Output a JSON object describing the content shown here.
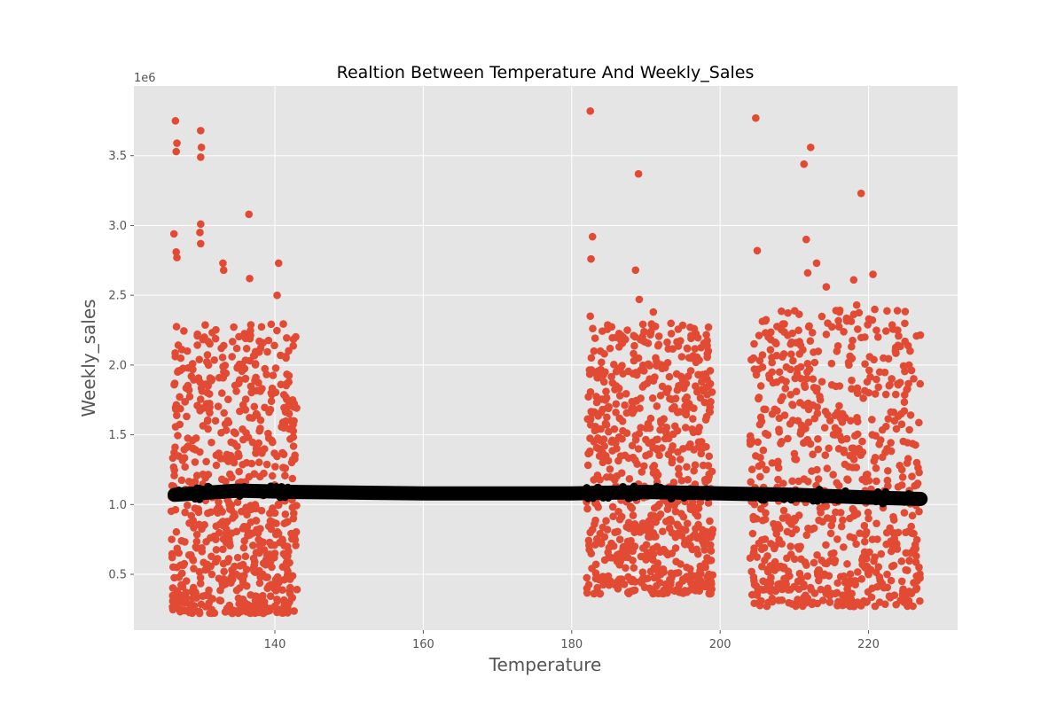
{
  "chart_data": {
    "type": "scatter",
    "title": "Realtion Between Temperature And Weekly_Sales",
    "xlabel": "Temperature",
    "ylabel": "Weekly_sales",
    "y_offset_label": "1e6",
    "xlim": [
      121,
      232
    ],
    "ylim": [
      0.1,
      4.0
    ],
    "x_ticks": [
      140,
      160,
      180,
      200,
      220
    ],
    "x_tick_labels": [
      "140",
      "160",
      "180",
      "200",
      "220"
    ],
    "y_ticks": [
      0.5,
      1.0,
      1.5,
      2.0,
      2.5,
      3.0,
      3.5
    ],
    "y_tick_labels": [
      "0.5",
      "1.0",
      "1.5",
      "2.0",
      "2.5",
      "3.0",
      "3.5"
    ],
    "grid": true,
    "style": "ggplot",
    "colors": {
      "background": "#e5e5e5",
      "grid": "#ffffff",
      "points": "#e24a33",
      "trend": "#000000"
    },
    "point_clusters": [
      {
        "x_range": [
          126,
          143
        ],
        "y_range": [
          0.22,
          2.3
        ]
      },
      {
        "x_range": [
          182,
          199
        ],
        "y_range": [
          0.36,
          2.3
        ]
      },
      {
        "x_range": [
          204,
          227
        ],
        "y_range": [
          0.27,
          2.4
        ]
      }
    ],
    "series": [
      {
        "kind": "scatter",
        "points": [
          [
            126.6,
            3.75
          ],
          [
            126.8,
            3.59
          ],
          [
            126.7,
            3.53
          ],
          [
            130.0,
            3.68
          ],
          [
            130.1,
            3.56
          ],
          [
            130.0,
            3.49
          ],
          [
            126.4,
            2.94
          ],
          [
            126.7,
            2.81
          ],
          [
            126.8,
            2.77
          ],
          [
            130.0,
            3.01
          ],
          [
            129.9,
            2.95
          ],
          [
            130.0,
            2.87
          ],
          [
            133.0,
            2.73
          ],
          [
            133.1,
            2.68
          ],
          [
            136.5,
            3.08
          ],
          [
            136.6,
            2.62
          ],
          [
            140.5,
            2.73
          ],
          [
            140.3,
            2.5
          ],
          [
            182.5,
            3.82
          ],
          [
            189.0,
            3.37
          ],
          [
            182.8,
            2.92
          ],
          [
            182.6,
            2.76
          ],
          [
            188.6,
            2.68
          ],
          [
            189.1,
            2.47
          ],
          [
            204.8,
            3.77
          ],
          [
            211.3,
            3.44
          ],
          [
            212.2,
            3.56
          ],
          [
            219.0,
            3.23
          ],
          [
            211.6,
            2.9
          ],
          [
            205.0,
            2.82
          ],
          [
            220.6,
            2.65
          ],
          [
            213.0,
            2.73
          ],
          [
            211.8,
            2.66
          ],
          [
            214.3,
            2.56
          ],
          [
            218.0,
            2.61
          ],
          [
            218.4,
            2.43
          ],
          [
            127.0,
            0.3
          ],
          [
            128.5,
            0.25
          ],
          [
            131.0,
            0.35
          ],
          [
            126.8,
            0.55
          ],
          [
            129.0,
            0.6
          ],
          [
            131.5,
            0.5
          ],
          [
            133.5,
            0.45
          ],
          [
            135.0,
            0.62
          ],
          [
            137.2,
            0.52
          ],
          [
            139.0,
            0.4
          ],
          [
            141.0,
            0.75
          ],
          [
            142.5,
            0.9
          ],
          [
            127.5,
            1.05
          ],
          [
            129.0,
            1.4
          ],
          [
            131.0,
            1.85
          ],
          [
            126.9,
            1.95
          ],
          [
            128.2,
            2.1
          ],
          [
            130.5,
            2.2
          ],
          [
            132.0,
            1.6
          ],
          [
            134.5,
            1.3
          ],
          [
            136.0,
            1.9
          ],
          [
            137.5,
            1.65
          ],
          [
            139.5,
            1.8
          ],
          [
            141.2,
            1.55
          ],
          [
            142.5,
            1.7
          ],
          [
            138.0,
            1.2
          ],
          [
            135.5,
            0.95
          ],
          [
            133.0,
            0.85
          ],
          [
            140.0,
            0.65
          ],
          [
            141.5,
            2.05
          ],
          [
            182.5,
            2.35
          ],
          [
            183.0,
            2.1
          ],
          [
            184.5,
            1.95
          ],
          [
            186.0,
            1.85
          ],
          [
            187.5,
            2.25
          ],
          [
            189.0,
            2.05
          ],
          [
            190.5,
            1.9
          ],
          [
            191.0,
            2.38
          ],
          [
            192.0,
            1.6
          ],
          [
            193.5,
            1.3
          ],
          [
            195.0,
            1.4
          ],
          [
            196.5,
            2.26
          ],
          [
            197.5,
            1.45
          ],
          [
            198.5,
            1.2
          ],
          [
            182.5,
            0.8
          ],
          [
            184.0,
            0.72
          ],
          [
            186.5,
            0.75
          ],
          [
            188.5,
            0.7
          ],
          [
            190.5,
            0.4
          ],
          [
            192.0,
            0.5
          ],
          [
            193.5,
            0.65
          ],
          [
            195.5,
            0.55
          ],
          [
            197.0,
            0.45
          ],
          [
            198.8,
            0.6
          ],
          [
            183.0,
            1.45
          ],
          [
            185.0,
            1.7
          ],
          [
            190.0,
            1.35
          ],
          [
            194.0,
            0.95
          ],
          [
            196.0,
            1.05
          ],
          [
            199.0,
            0.82
          ],
          [
            204.5,
            2.05
          ],
          [
            205.5,
            1.85
          ],
          [
            206.5,
            2.2
          ],
          [
            208.0,
            1.95
          ],
          [
            209.5,
            2.15
          ],
          [
            210.5,
            1.6
          ],
          [
            211.5,
            1.45
          ],
          [
            212.5,
            1.9
          ],
          [
            213.5,
            1.75
          ],
          [
            214.5,
            2.3
          ],
          [
            215.5,
            1.55
          ],
          [
            216.5,
            1.65
          ],
          [
            217.5,
            1.35
          ],
          [
            218.5,
            1.8
          ],
          [
            219.5,
            2.2
          ],
          [
            220.5,
            1.5
          ],
          [
            221.5,
            1.95
          ],
          [
            222.5,
            1.4
          ],
          [
            223.5,
            1.6
          ],
          [
            224.5,
            1.25
          ],
          [
            225.5,
            1.1
          ],
          [
            226.5,
            1.3
          ],
          [
            226.8,
            0.95
          ],
          [
            225.0,
            0.8
          ],
          [
            204.5,
            0.65
          ],
          [
            206.0,
            0.6
          ],
          [
            208.0,
            0.55
          ],
          [
            209.5,
            0.7
          ],
          [
            210.5,
            0.45
          ],
          [
            211.5,
            0.35
          ],
          [
            212.5,
            0.3
          ],
          [
            213.5,
            0.5
          ],
          [
            214.5,
            0.4
          ],
          [
            215.5,
            0.6
          ],
          [
            216.5,
            0.35
          ],
          [
            217.5,
            0.45
          ],
          [
            218.5,
            0.3
          ],
          [
            219.5,
            0.55
          ],
          [
            220.5,
            0.4
          ],
          [
            221.5,
            0.3
          ],
          [
            222.5,
            0.5
          ],
          [
            223.5,
            0.35
          ],
          [
            224.5,
            0.45
          ],
          [
            225.5,
            0.6
          ],
          [
            226.5,
            0.4
          ],
          [
            226.8,
            0.55
          ],
          [
            210.0,
            0.9
          ],
          [
            215.0,
            0.85
          ],
          [
            220.0,
            0.9
          ],
          [
            224.0,
            0.8
          ],
          [
            207.0,
            1.95
          ],
          [
            212.0,
            2.28
          ],
          [
            216.0,
            1.4
          ],
          [
            222.0,
            2.05
          ]
        ]
      },
      {
        "kind": "trend",
        "points": [
          [
            126.5,
            1.07
          ],
          [
            135.0,
            1.1
          ],
          [
            143.0,
            1.09
          ],
          [
            160.0,
            1.08
          ],
          [
            180.0,
            1.08
          ],
          [
            190.0,
            1.09
          ],
          [
            200.0,
            1.08
          ],
          [
            210.0,
            1.07
          ],
          [
            220.0,
            1.05
          ],
          [
            227.0,
            1.04
          ]
        ]
      }
    ]
  }
}
